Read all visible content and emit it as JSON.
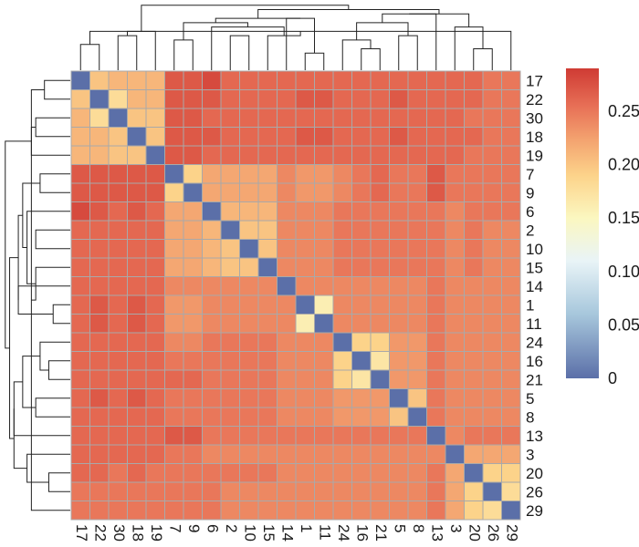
{
  "chart_data": {
    "type": "heatmap",
    "title": "",
    "xlabel": "",
    "ylabel": "",
    "labels": [
      "17",
      "22",
      "30",
      "18",
      "19",
      "7",
      "9",
      "6",
      "2",
      "10",
      "15",
      "14",
      "1",
      "11",
      "24",
      "16",
      "21",
      "5",
      "8",
      "13",
      "3",
      "20",
      "26",
      "29"
    ],
    "values": [
      [
        0,
        0.2,
        0.21,
        0.21,
        0.21,
        0.27,
        0.27,
        0.28,
        0.26,
        0.26,
        0.26,
        0.26,
        0.26,
        0.26,
        0.26,
        0.26,
        0.26,
        0.26,
        0.26,
        0.26,
        0.26,
        0.26,
        0.25,
        0.25
      ],
      [
        0.2,
        0,
        0.18,
        0.21,
        0.21,
        0.27,
        0.27,
        0.27,
        0.26,
        0.26,
        0.26,
        0.26,
        0.27,
        0.27,
        0.26,
        0.26,
        0.26,
        0.27,
        0.26,
        0.26,
        0.26,
        0.26,
        0.25,
        0.25
      ],
      [
        0.21,
        0.18,
        0,
        0.2,
        0.2,
        0.27,
        0.27,
        0.26,
        0.26,
        0.26,
        0.26,
        0.26,
        0.26,
        0.26,
        0.26,
        0.26,
        0.26,
        0.26,
        0.26,
        0.26,
        0.26,
        0.25,
        0.25,
        0.25
      ],
      [
        0.21,
        0.21,
        0.2,
        0,
        0.2,
        0.27,
        0.27,
        0.27,
        0.26,
        0.26,
        0.26,
        0.26,
        0.27,
        0.27,
        0.26,
        0.26,
        0.26,
        0.27,
        0.26,
        0.26,
        0.26,
        0.26,
        0.25,
        0.25
      ],
      [
        0.21,
        0.21,
        0.2,
        0.2,
        0,
        0.27,
        0.27,
        0.26,
        0.26,
        0.26,
        0.26,
        0.26,
        0.26,
        0.26,
        0.26,
        0.26,
        0.26,
        0.26,
        0.26,
        0.26,
        0.26,
        0.25,
        0.25,
        0.25
      ],
      [
        0.27,
        0.27,
        0.27,
        0.27,
        0.27,
        0,
        0.19,
        0.22,
        0.22,
        0.22,
        0.22,
        0.24,
        0.23,
        0.23,
        0.24,
        0.25,
        0.26,
        0.25,
        0.25,
        0.27,
        0.25,
        0.25,
        0.25,
        0.25
      ],
      [
        0.27,
        0.27,
        0.27,
        0.27,
        0.27,
        0.19,
        0,
        0.22,
        0.22,
        0.22,
        0.22,
        0.24,
        0.23,
        0.23,
        0.24,
        0.25,
        0.26,
        0.25,
        0.25,
        0.27,
        0.25,
        0.25,
        0.25,
        0.25
      ],
      [
        0.28,
        0.27,
        0.26,
        0.27,
        0.26,
        0.22,
        0.22,
        0,
        0.21,
        0.21,
        0.21,
        0.24,
        0.24,
        0.24,
        0.25,
        0.25,
        0.25,
        0.25,
        0.25,
        0.25,
        0.24,
        0.25,
        0.25,
        0.25
      ],
      [
        0.26,
        0.26,
        0.26,
        0.26,
        0.26,
        0.22,
        0.22,
        0.21,
        0,
        0.2,
        0.2,
        0.24,
        0.24,
        0.24,
        0.25,
        0.25,
        0.25,
        0.25,
        0.25,
        0.25,
        0.24,
        0.25,
        0.24,
        0.24
      ],
      [
        0.26,
        0.26,
        0.26,
        0.26,
        0.26,
        0.22,
        0.22,
        0.21,
        0.2,
        0,
        0.2,
        0.24,
        0.24,
        0.24,
        0.25,
        0.25,
        0.25,
        0.25,
        0.25,
        0.25,
        0.24,
        0.25,
        0.24,
        0.24
      ],
      [
        0.26,
        0.26,
        0.26,
        0.26,
        0.26,
        0.22,
        0.22,
        0.21,
        0.2,
        0.2,
        0,
        0.24,
        0.24,
        0.24,
        0.25,
        0.25,
        0.25,
        0.25,
        0.25,
        0.25,
        0.24,
        0.25,
        0.24,
        0.24
      ],
      [
        0.26,
        0.26,
        0.26,
        0.26,
        0.26,
        0.24,
        0.24,
        0.24,
        0.24,
        0.24,
        0.24,
        0,
        0.24,
        0.24,
        0.24,
        0.24,
        0.24,
        0.24,
        0.24,
        0.25,
        0.24,
        0.24,
        0.24,
        0.24
      ],
      [
        0.26,
        0.27,
        0.26,
        0.27,
        0.26,
        0.23,
        0.23,
        0.24,
        0.24,
        0.24,
        0.24,
        0.24,
        0,
        0.16,
        0.24,
        0.24,
        0.24,
        0.24,
        0.24,
        0.25,
        0.24,
        0.24,
        0.24,
        0.24
      ],
      [
        0.26,
        0.27,
        0.26,
        0.27,
        0.26,
        0.23,
        0.23,
        0.24,
        0.24,
        0.24,
        0.24,
        0.24,
        0.16,
        0,
        0.24,
        0.24,
        0.24,
        0.24,
        0.24,
        0.25,
        0.24,
        0.24,
        0.24,
        0.24
      ],
      [
        0.26,
        0.26,
        0.26,
        0.26,
        0.26,
        0.24,
        0.24,
        0.25,
        0.25,
        0.25,
        0.25,
        0.24,
        0.24,
        0.24,
        0,
        0.19,
        0.19,
        0.23,
        0.23,
        0.25,
        0.24,
        0.24,
        0.24,
        0.24
      ],
      [
        0.26,
        0.26,
        0.26,
        0.26,
        0.26,
        0.25,
        0.25,
        0.25,
        0.25,
        0.25,
        0.25,
        0.24,
        0.24,
        0.24,
        0.19,
        0,
        0.17,
        0.23,
        0.23,
        0.25,
        0.24,
        0.24,
        0.24,
        0.24
      ],
      [
        0.26,
        0.26,
        0.26,
        0.26,
        0.26,
        0.26,
        0.26,
        0.25,
        0.25,
        0.25,
        0.25,
        0.24,
        0.24,
        0.24,
        0.19,
        0.17,
        0,
        0.23,
        0.23,
        0.25,
        0.24,
        0.24,
        0.24,
        0.24
      ],
      [
        0.26,
        0.27,
        0.26,
        0.27,
        0.26,
        0.25,
        0.25,
        0.25,
        0.25,
        0.25,
        0.25,
        0.24,
        0.24,
        0.24,
        0.23,
        0.23,
        0.23,
        0,
        0.2,
        0.25,
        0.24,
        0.24,
        0.24,
        0.24
      ],
      [
        0.26,
        0.26,
        0.26,
        0.26,
        0.26,
        0.25,
        0.25,
        0.25,
        0.25,
        0.25,
        0.25,
        0.24,
        0.24,
        0.24,
        0.23,
        0.23,
        0.23,
        0.2,
        0,
        0.25,
        0.24,
        0.24,
        0.24,
        0.24
      ],
      [
        0.26,
        0.26,
        0.26,
        0.26,
        0.26,
        0.27,
        0.27,
        0.25,
        0.25,
        0.25,
        0.25,
        0.25,
        0.25,
        0.25,
        0.25,
        0.25,
        0.25,
        0.25,
        0.25,
        0,
        0.24,
        0.25,
        0.25,
        0.25
      ],
      [
        0.26,
        0.26,
        0.26,
        0.26,
        0.26,
        0.25,
        0.25,
        0.24,
        0.24,
        0.24,
        0.24,
        0.24,
        0.24,
        0.24,
        0.24,
        0.24,
        0.24,
        0.24,
        0.24,
        0.24,
        0,
        0.22,
        0.22,
        0.22
      ],
      [
        0.26,
        0.26,
        0.25,
        0.26,
        0.25,
        0.25,
        0.25,
        0.25,
        0.25,
        0.25,
        0.25,
        0.24,
        0.24,
        0.24,
        0.24,
        0.24,
        0.24,
        0.24,
        0.24,
        0.25,
        0.22,
        0,
        0.19,
        0.19
      ],
      [
        0.25,
        0.25,
        0.25,
        0.25,
        0.25,
        0.25,
        0.25,
        0.25,
        0.24,
        0.24,
        0.24,
        0.24,
        0.24,
        0.24,
        0.24,
        0.24,
        0.24,
        0.24,
        0.24,
        0.25,
        0.22,
        0.19,
        0,
        0.18
      ],
      [
        0.25,
        0.25,
        0.25,
        0.25,
        0.25,
        0.25,
        0.25,
        0.25,
        0.24,
        0.24,
        0.24,
        0.24,
        0.24,
        0.24,
        0.24,
        0.24,
        0.24,
        0.24,
        0.24,
        0.25,
        0.22,
        0.19,
        0.18,
        0
      ]
    ],
    "colorbar": {
      "range": [
        0,
        0.29
      ],
      "ticks": [
        0,
        0.05,
        0.1,
        0.15,
        0.2,
        0.25
      ],
      "tick_labels": [
        "0",
        "0.05",
        "0.10",
        "0.15",
        "0.20",
        "0.25"
      ],
      "stops": [
        {
          "v": 0.0,
          "color": "#5b6fa8"
        },
        {
          "v": 0.06,
          "color": "#a7c7dc"
        },
        {
          "v": 0.11,
          "color": "#e9f4f7"
        },
        {
          "v": 0.15,
          "color": "#fbf7c0"
        },
        {
          "v": 0.19,
          "color": "#fcd38a"
        },
        {
          "v": 0.225,
          "color": "#f3a06e"
        },
        {
          "v": 0.255,
          "color": "#e76f56"
        },
        {
          "v": 0.29,
          "color": "#cf3b34"
        }
      ]
    },
    "dendrogram": {
      "leaf_order": [
        "17",
        "22",
        "30",
        "18",
        "19",
        "7",
        "9",
        "6",
        "2",
        "10",
        "15",
        "14",
        "1",
        "11",
        "24",
        "16",
        "21",
        "5",
        "8",
        "13",
        "3",
        "20",
        "26",
        "29"
      ],
      "merges": [
        [
          0,
          1,
          0.18
        ],
        [
          21,
          22,
          0.17
        ],
        [
          24,
          23,
          0.21
        ],
        [
          8,
          9,
          0.2
        ],
        [
          2,
          3,
          0.2
        ],
        [
          26,
          10,
          0.2
        ],
        [
          15,
          16,
          0.17
        ],
        [
          28,
          4,
          0.21
        ],
        [
          14,
          30,
          0.19
        ],
        [
          5,
          6,
          0.19
        ],
        [
          29,
          7,
          0.22
        ],
        [
          17,
          18,
          0.2
        ],
        [
          12,
          13,
          0.16
        ],
        [
          25,
          20,
          0.22
        ],
        [
          36,
          11,
          0.24
        ],
        [
          32,
          35,
          0.23
        ],
        [
          33,
          34,
          0.23
        ],
        [
          39,
          19,
          0.25
        ],
        [
          40,
          38,
          0.24
        ],
        [
          41,
          37,
          0.25
        ],
        [
          42,
          43,
          0.26
        ],
        [
          31,
          44,
          0.27
        ]
      ]
    }
  }
}
